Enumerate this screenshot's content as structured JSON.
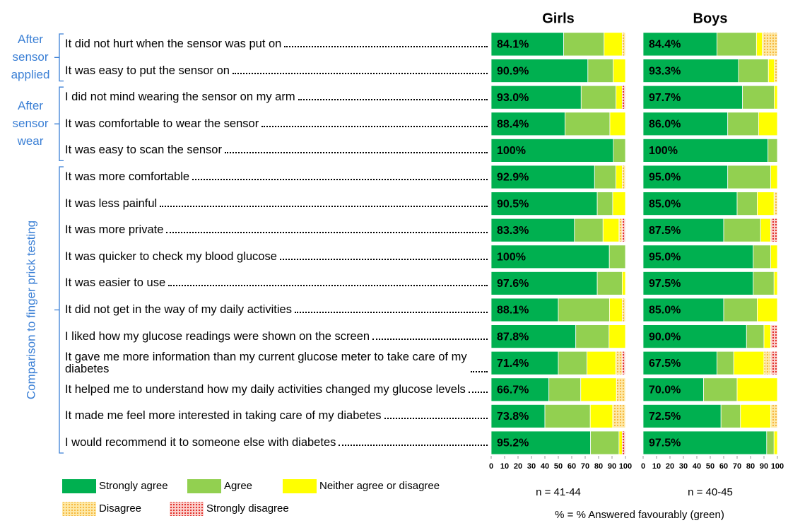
{
  "groups": [
    {
      "label_lines": [
        "After",
        "sensor",
        "applied"
      ],
      "questions": [
        "It did not hurt when the sensor was put on",
        "It was easy to put the sensor on"
      ]
    },
    {
      "label_lines": [
        "After",
        "sensor",
        "wear"
      ],
      "questions": [
        "I did not mind wearing the sensor on my arm",
        "It was comfortable to wear the sensor",
        "It was easy to scan the sensor"
      ]
    },
    {
      "label_lines": [
        "Comparison to finger prick testing"
      ],
      "rotated": true,
      "questions": [
        "It was more comfortable",
        "It was less painful",
        "It was more private",
        "It was quicker to check my blood glucose",
        "It was easier to use",
        "It did not get in the way of my daily activities",
        "I liked how my glucose readings were shown on the screen",
        "It gave me more information than my current glucose meter to take care of my diabetes",
        "It helped me to understand how my daily activities changed my glucose levels",
        "It made me feel more interested in taking care of my diabetes",
        "I would recommend it to someone else with diabetes"
      ]
    }
  ],
  "note": "% = % Answered favourably (green)",
  "chart_data": [
    {
      "type": "bar",
      "orientation": "horizontal",
      "stacked": true,
      "title": "Girls",
      "n_label": "n = 41-44",
      "xlim": [
        0,
        100
      ],
      "xticks": [
        0,
        10,
        20,
        30,
        40,
        50,
        60,
        70,
        80,
        90,
        100
      ],
      "series": [
        {
          "name": "Strongly agree",
          "color": "#00b050",
          "values": [
            54,
            72,
            67,
            55,
            91,
            77,
            79,
            62,
            88,
            79,
            50,
            63,
            50,
            43,
            40,
            74
          ]
        },
        {
          "name": "Agree",
          "color": "#92d050",
          "values": [
            30.1,
            18.9,
            26,
            33.4,
            9,
            15.9,
            11.5,
            21.3,
            12,
            18.6,
            38.1,
            24.8,
            21.4,
            23.7,
            33.8,
            21.2
          ]
        },
        {
          "name": "Neither agree or disagree",
          "color": "#ffff00",
          "values": [
            13.5,
            9.1,
            4.6,
            11.6,
            0,
            4.8,
            9.5,
            11.9,
            0,
            2.4,
            9.5,
            12.2,
            21.4,
            26.6,
            16.7,
            2.4
          ]
        },
        {
          "name": "Disagree",
          "color": "#f5b335",
          "pattern": "dots",
          "values": [
            2.4,
            0,
            0,
            0,
            0,
            2.3,
            0,
            2.4,
            0,
            0,
            2.4,
            0,
            4.8,
            6.7,
            9.5,
            0
          ]
        },
        {
          "name": "Strongly disagree",
          "color": "#e0201b",
          "pattern": "dots",
          "values": [
            0,
            0,
            2.4,
            0,
            0,
            0,
            0,
            2.4,
            0,
            0,
            0,
            0,
            2.4,
            0,
            0,
            2.4
          ]
        }
      ],
      "favourable": {
        "values": [
          84.1,
          90.9,
          93.0,
          88.4,
          100,
          92.9,
          90.5,
          83.3,
          100,
          97.6,
          88.1,
          87.8,
          71.4,
          66.7,
          73.8,
          95.2
        ],
        "value_labels": [
          "84.1%",
          "90.9%",
          "93.0%",
          "88.4%",
          "100%",
          "92.9%",
          "90.5%",
          "83.3%",
          "100%",
          "97.6%",
          "88.1%",
          "87.8%",
          "71.4%",
          "66.7%",
          "73.8%",
          "95.2%"
        ]
      }
    },
    {
      "type": "bar",
      "orientation": "horizontal",
      "stacked": true,
      "title": "Boys",
      "n_label": "n = 40-45",
      "xlim": [
        0,
        100
      ],
      "xticks": [
        0,
        10,
        20,
        30,
        40,
        50,
        60,
        70,
        80,
        90,
        100
      ],
      "series": [
        {
          "values": [
            55,
            71,
            74,
            63,
            93,
            63,
            70,
            60,
            82,
            82,
            60,
            77,
            55,
            45,
            58,
            92
          ]
        },
        {
          "values": [
            29.4,
            22.3,
            23.7,
            23,
            7,
            32,
            15,
            27.5,
            13,
            15.5,
            25,
            13,
            12.5,
            25,
            14.5,
            5.5
          ]
        },
        {
          "values": [
            4.4,
            4.5,
            2.3,
            14,
            0,
            5,
            12.5,
            7.5,
            5,
            2.5,
            15,
            5,
            22.5,
            30,
            22.5,
            2.5
          ]
        },
        {
          "values": [
            11.2,
            2.2,
            0,
            0,
            0,
            0,
            2.5,
            0,
            0,
            0,
            0,
            0,
            5,
            0,
            5,
            0
          ]
        },
        {
          "values": [
            0,
            0,
            0,
            0,
            0,
            0,
            0,
            5,
            0,
            0,
            0,
            5,
            5,
            0,
            0,
            0
          ]
        }
      ],
      "favourable": {
        "values": [
          84.4,
          93.3,
          97.7,
          86.0,
          100,
          95.0,
          85.0,
          87.5,
          95.0,
          97.5,
          85.0,
          90.0,
          67.5,
          70.0,
          72.5,
          97.5
        ],
        "value_labels": [
          "84.4%",
          "93.3%",
          "97.7%",
          "86.0%",
          "100%",
          "95.0%",
          "85.0%",
          "87.5%",
          "95.0%",
          "97.5%",
          "85.0%",
          "90.0%",
          "67.5%",
          "70.0%",
          "72.5%",
          "97.5%"
        ]
      }
    }
  ]
}
